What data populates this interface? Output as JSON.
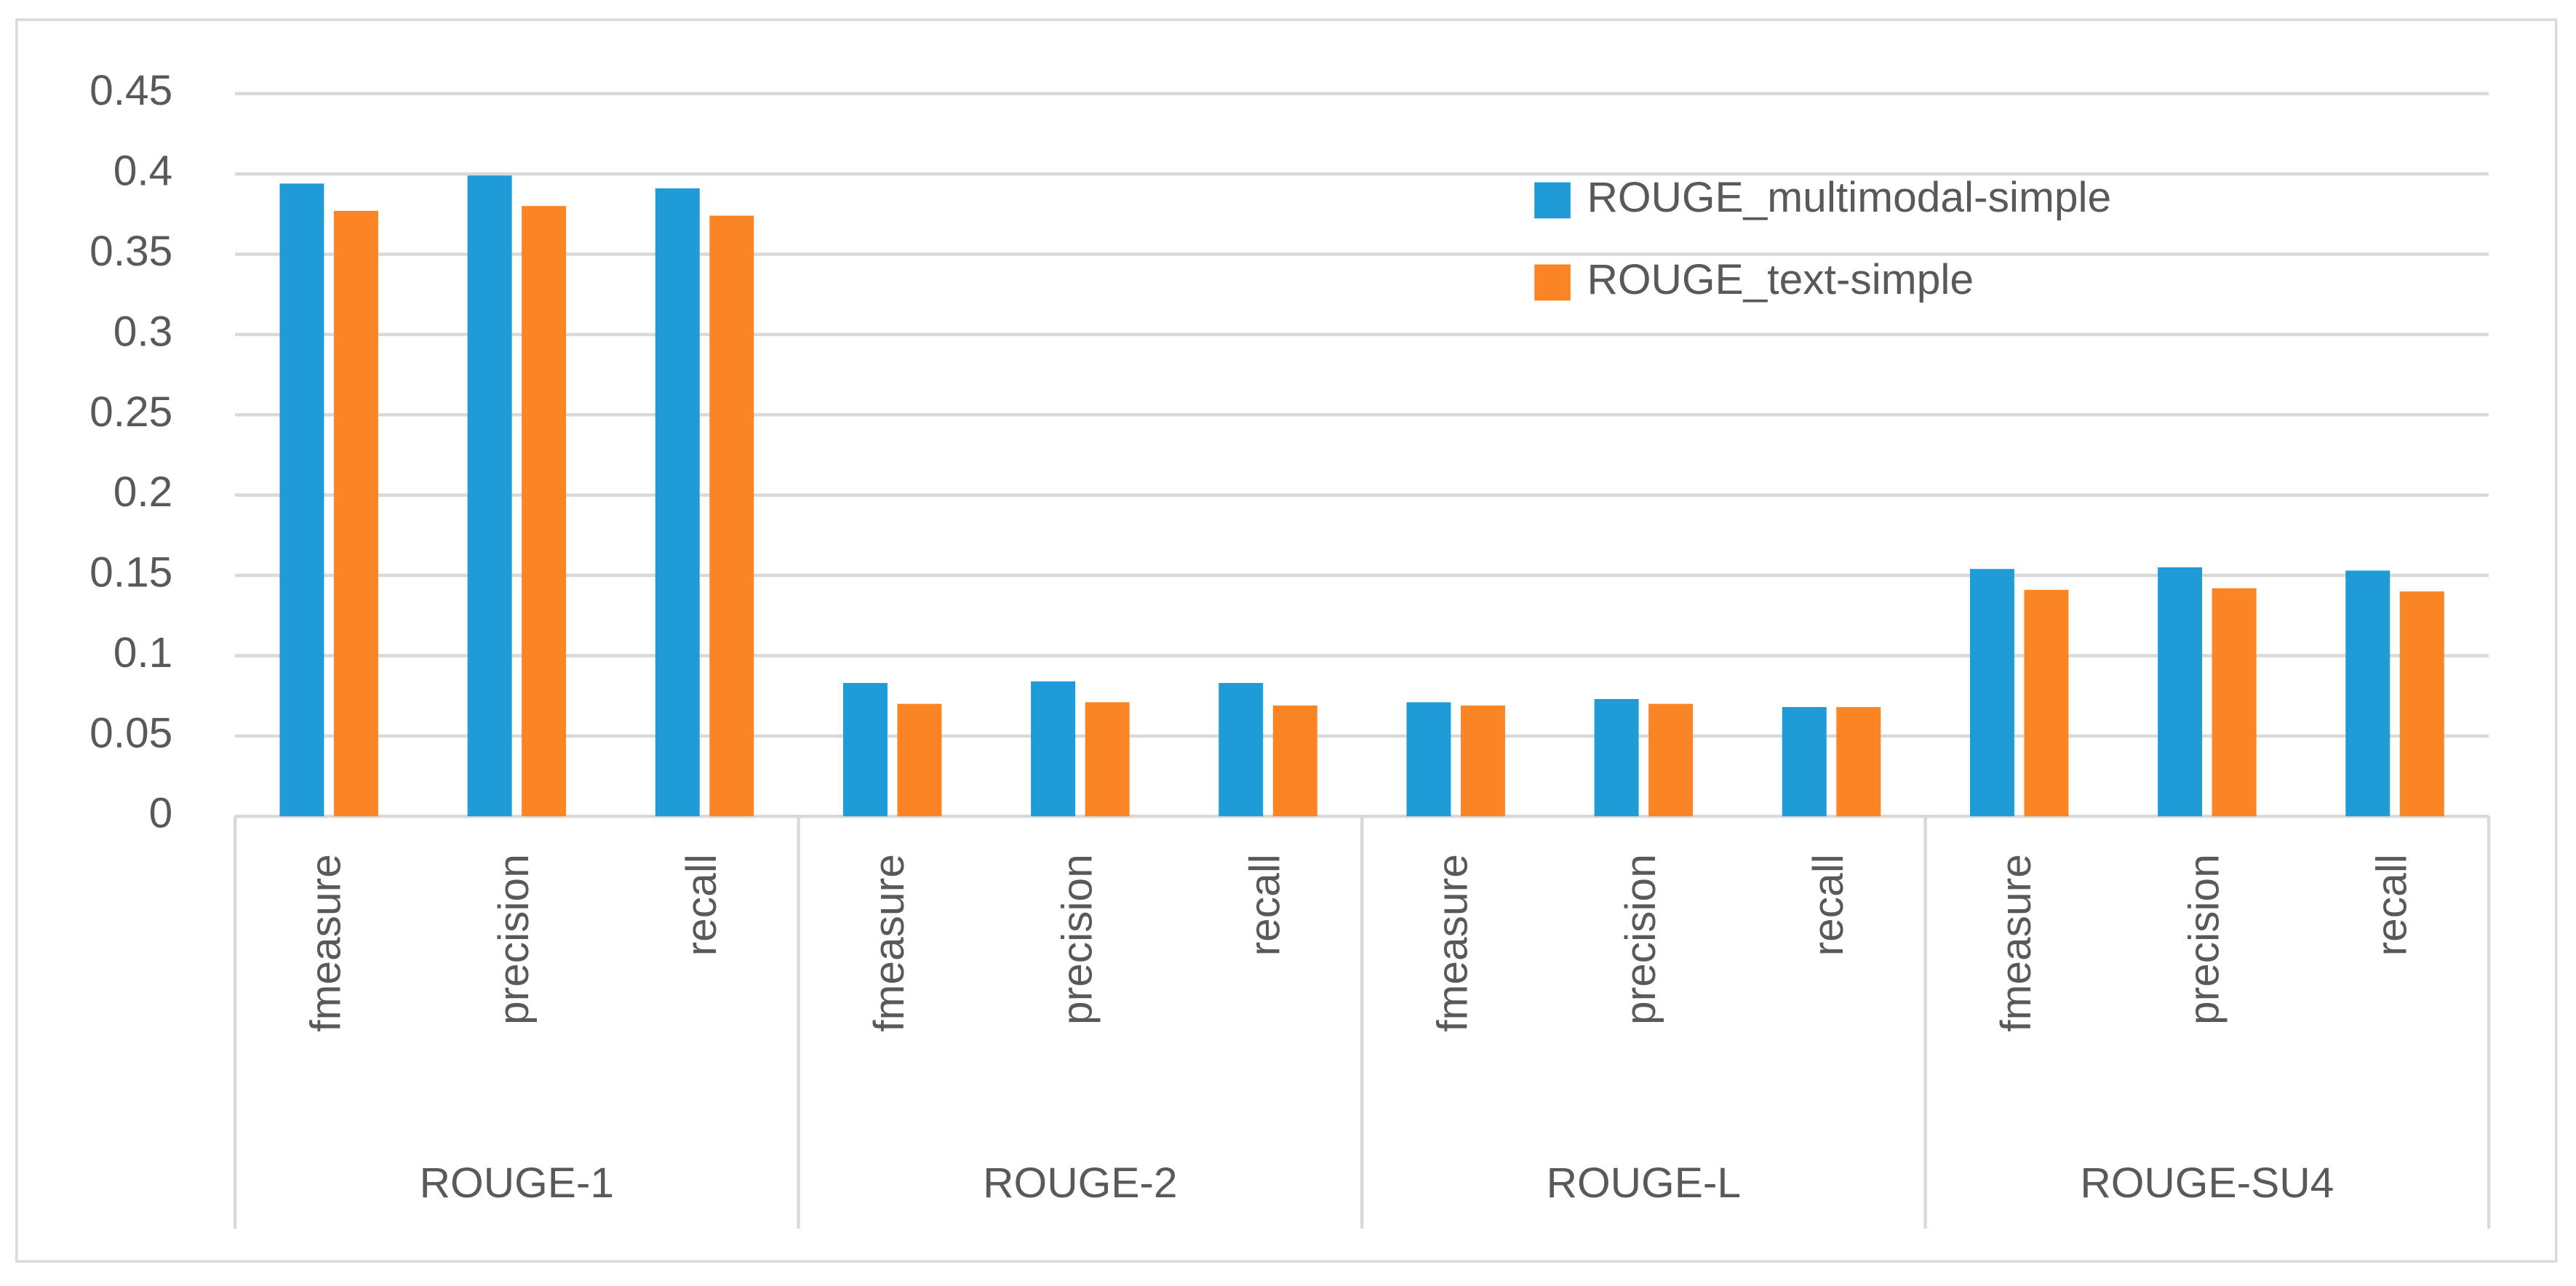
{
  "chart_data": {
    "type": "bar",
    "categories": [
      "fmeasure",
      "precision",
      "recall",
      "fmeasure",
      "precision",
      "recall",
      "fmeasure",
      "precision",
      "recall",
      "fmeasure",
      "precision",
      "recall"
    ],
    "category_groups": [
      "ROUGE-1",
      "ROUGE-2",
      "ROUGE-L",
      "ROUGE-SU4"
    ],
    "series": [
      {
        "name": "ROUGE_multimodal-simple",
        "color": "#1f9bd7",
        "values": [
          0.394,
          0.399,
          0.391,
          0.083,
          0.084,
          0.083,
          0.071,
          0.073,
          0.068,
          0.154,
          0.155,
          0.153
        ]
      },
      {
        "name": "ROUGE_text-simple",
        "color": "#fb8425",
        "values": [
          0.377,
          0.38,
          0.374,
          0.07,
          0.071,
          0.069,
          0.069,
          0.07,
          0.068,
          0.141,
          0.142,
          0.14
        ]
      }
    ],
    "ylim": [
      0,
      0.45
    ],
    "yticks": [
      0,
      0.05,
      0.1,
      0.15,
      0.2,
      0.25,
      0.3,
      0.35,
      0.4,
      0.45
    ],
    "grid": true,
    "legend": "top-right"
  }
}
